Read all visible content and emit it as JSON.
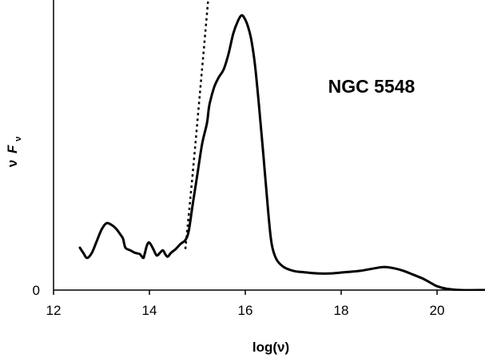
{
  "chart_data": {
    "type": "line",
    "title": "",
    "xlabel": "log(ν)",
    "ylabel_symbol": "ν",
    "ylabel_italic": "F",
    "ylabel_sub": "ν",
    "xlim": [
      12,
      21
    ],
    "ylim": [
      0,
      1.13
    ],
    "x_ticks": [
      "12",
      "14",
      "16",
      "18",
      "20"
    ],
    "x_tick_values": [
      12,
      14,
      16,
      18,
      20
    ],
    "y_ticks": [
      "0"
    ],
    "y_tick_values": [
      0
    ],
    "grid": false,
    "annotation": "NGC 5548",
    "series": [
      {
        "style": "solid",
        "color": "#000000",
        "x": [
          12.55,
          12.62,
          12.7,
          12.8,
          12.9,
          13.0,
          13.1,
          13.2,
          13.3,
          13.4,
          13.45,
          13.5,
          13.6,
          13.7,
          13.8,
          13.87,
          13.9,
          13.95,
          14.0,
          14.08,
          14.15,
          14.22,
          14.28,
          14.33,
          14.38,
          14.45,
          14.55,
          14.65,
          14.75,
          14.82,
          14.9,
          15.0,
          15.1,
          15.2,
          15.25,
          15.35,
          15.45,
          15.55,
          15.65,
          15.75,
          15.85,
          15.92,
          15.98,
          16.05,
          16.12,
          16.2,
          16.28,
          16.38,
          16.48,
          16.55,
          16.65,
          16.8,
          17.0,
          17.2,
          17.5,
          17.8,
          18.1,
          18.4,
          18.7,
          18.9,
          19.1,
          19.3,
          19.5,
          19.7,
          19.85,
          20.0,
          20.2,
          20.5,
          21.0
        ],
        "y": [
          0.165,
          0.145,
          0.125,
          0.145,
          0.19,
          0.235,
          0.26,
          0.255,
          0.24,
          0.215,
          0.2,
          0.165,
          0.155,
          0.145,
          0.14,
          0.125,
          0.14,
          0.175,
          0.185,
          0.16,
          0.135,
          0.145,
          0.155,
          0.14,
          0.13,
          0.145,
          0.16,
          0.18,
          0.195,
          0.23,
          0.33,
          0.45,
          0.57,
          0.65,
          0.72,
          0.79,
          0.83,
          0.86,
          0.92,
          1.0,
          1.05,
          1.07,
          1.06,
          1.03,
          0.98,
          0.88,
          0.73,
          0.52,
          0.3,
          0.18,
          0.12,
          0.09,
          0.075,
          0.07,
          0.065,
          0.065,
          0.07,
          0.075,
          0.085,
          0.09,
          0.085,
          0.075,
          0.06,
          0.045,
          0.03,
          0.015,
          0.005,
          0.0,
          0.0
        ]
      },
      {
        "style": "dotted",
        "color": "#000000",
        "x": [
          14.75,
          14.85,
          14.95,
          15.05,
          15.15,
          15.22,
          15.26
        ],
        "y": [
          0.16,
          0.35,
          0.55,
          0.76,
          0.97,
          1.12,
          1.22
        ]
      }
    ]
  }
}
